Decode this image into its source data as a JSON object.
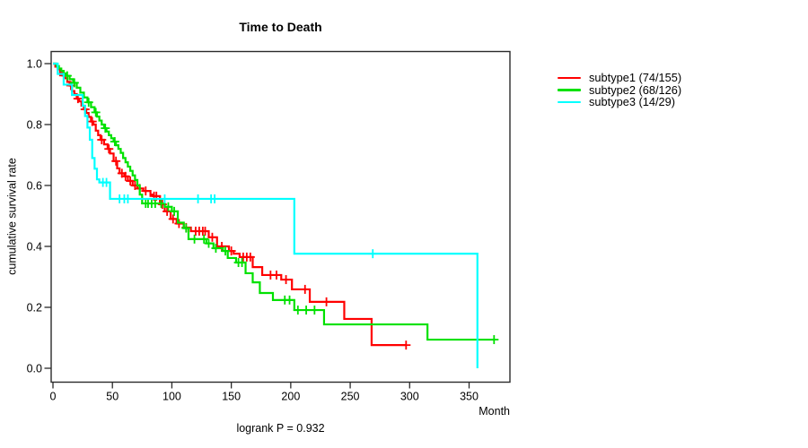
{
  "title": "Time to Death",
  "footer": "logrank P = 0.932",
  "chart_data": {
    "type": "line",
    "subtype": "kaplan-meier-step-curves",
    "title": "Time to Death",
    "xlabel": "Month",
    "ylabel": "cumulative survival rate",
    "annotation": "logrank P = 0.932",
    "xlim": [
      0,
      385
    ],
    "ylim": [
      0.0,
      1.0
    ],
    "x_ticks": [
      0,
      50,
      100,
      150,
      200,
      250,
      300,
      350
    ],
    "y_ticks": [
      "0.0",
      "0.2",
      "0.4",
      "0.6",
      "0.8",
      "1.0"
    ],
    "grid": false,
    "legend_position": "right",
    "axis_color": "#2a2a2a",
    "series": [
      {
        "id": "subtype1",
        "name": "subtype1 (74/155)",
        "color": "#ff0000",
        "events": 74,
        "n": 155,
        "end": 297,
        "steps": [
          [
            0,
            1.0
          ],
          [
            2,
            0.99
          ],
          [
            4,
            0.981
          ],
          [
            6,
            0.97
          ],
          [
            8,
            0.961
          ],
          [
            10,
            0.952
          ],
          [
            12,
            0.94
          ],
          [
            14,
            0.928
          ],
          [
            16,
            0.91
          ],
          [
            18,
            0.9
          ],
          [
            20,
            0.885
          ],
          [
            22,
            0.876
          ],
          [
            24,
            0.862
          ],
          [
            26,
            0.85
          ],
          [
            28,
            0.838
          ],
          [
            30,
            0.825
          ],
          [
            32,
            0.81
          ],
          [
            34,
            0.8
          ],
          [
            36,
            0.78
          ],
          [
            38,
            0.765
          ],
          [
            40,
            0.75
          ],
          [
            43,
            0.735
          ],
          [
            46,
            0.72
          ],
          [
            48,
            0.705
          ],
          [
            51,
            0.68
          ],
          [
            54,
            0.656
          ],
          [
            56,
            0.64
          ],
          [
            60,
            0.63
          ],
          [
            63,
            0.615
          ],
          [
            67,
            0.6
          ],
          [
            71,
            0.59
          ],
          [
            76,
            0.582
          ],
          [
            82,
            0.57
          ],
          [
            84,
            0.565
          ],
          [
            90,
            0.538
          ],
          [
            94,
            0.515
          ],
          [
            99,
            0.49
          ],
          [
            104,
            0.475
          ],
          [
            110,
            0.462
          ],
          [
            116,
            0.45
          ],
          [
            131,
            0.43
          ],
          [
            138,
            0.4
          ],
          [
            148,
            0.385
          ],
          [
            152,
            0.376
          ],
          [
            157,
            0.365
          ],
          [
            168,
            0.332
          ],
          [
            176,
            0.306
          ],
          [
            192,
            0.291
          ],
          [
            201,
            0.259
          ],
          [
            216,
            0.218
          ],
          [
            245,
            0.162
          ],
          [
            268,
            0.076
          ]
        ],
        "censors": [
          [
            9,
            0.961
          ],
          [
            15,
            0.928
          ],
          [
            21,
            0.885
          ],
          [
            27,
            0.85
          ],
          [
            33,
            0.81
          ],
          [
            41,
            0.75
          ],
          [
            47,
            0.72
          ],
          [
            53,
            0.68
          ],
          [
            58,
            0.64
          ],
          [
            61,
            0.63
          ],
          [
            65,
            0.615
          ],
          [
            69,
            0.6
          ],
          [
            73,
            0.59
          ],
          [
            78,
            0.582
          ],
          [
            85,
            0.565
          ],
          [
            87,
            0.565
          ],
          [
            92,
            0.538
          ],
          [
            96,
            0.515
          ],
          [
            101,
            0.49
          ],
          [
            106,
            0.475
          ],
          [
            112,
            0.462
          ],
          [
            120,
            0.45
          ],
          [
            123,
            0.45
          ],
          [
            126,
            0.45
          ],
          [
            128,
            0.45
          ],
          [
            134,
            0.43
          ],
          [
            142,
            0.4
          ],
          [
            150,
            0.385
          ],
          [
            160,
            0.365
          ],
          [
            163,
            0.365
          ],
          [
            166,
            0.365
          ],
          [
            183,
            0.306
          ],
          [
            188,
            0.306
          ],
          [
            196,
            0.291
          ],
          [
            212,
            0.259
          ],
          [
            230,
            0.218
          ],
          [
            297,
            0.076
          ]
        ]
      },
      {
        "id": "subtype2",
        "name": "subtype2 (68/126)",
        "color": "#00e100",
        "events": 68,
        "n": 126,
        "end": 371,
        "steps": [
          [
            0,
            1.0
          ],
          [
            3,
            0.992
          ],
          [
            5,
            0.984
          ],
          [
            7,
            0.976
          ],
          [
            9,
            0.968
          ],
          [
            11,
            0.96
          ],
          [
            14,
            0.949
          ],
          [
            17,
            0.937
          ],
          [
            20,
            0.921
          ],
          [
            23,
            0.905
          ],
          [
            26,
            0.889
          ],
          [
            29,
            0.873
          ],
          [
            32,
            0.857
          ],
          [
            35,
            0.84
          ],
          [
            37,
            0.826
          ],
          [
            39,
            0.813
          ],
          [
            41,
            0.8
          ],
          [
            43,
            0.788
          ],
          [
            45,
            0.777
          ],
          [
            47,
            0.765
          ],
          [
            49,
            0.755
          ],
          [
            51,
            0.744
          ],
          [
            53,
            0.732
          ],
          [
            55,
            0.72
          ],
          [
            57,
            0.707
          ],
          [
            59,
            0.69
          ],
          [
            61,
            0.676
          ],
          [
            63,
            0.662
          ],
          [
            65,
            0.648
          ],
          [
            67,
            0.633
          ],
          [
            69,
            0.618
          ],
          [
            71,
            0.6
          ],
          [
            73,
            0.57
          ],
          [
            75,
            0.541
          ],
          [
            94,
            0.53
          ],
          [
            100,
            0.515
          ],
          [
            105,
            0.478
          ],
          [
            110,
            0.46
          ],
          [
            114,
            0.424
          ],
          [
            129,
            0.41
          ],
          [
            135,
            0.394
          ],
          [
            143,
            0.385
          ],
          [
            147,
            0.362
          ],
          [
            154,
            0.347
          ],
          [
            162,
            0.312
          ],
          [
            168,
            0.282
          ],
          [
            174,
            0.247
          ],
          [
            185,
            0.224
          ],
          [
            203,
            0.191
          ],
          [
            228,
            0.144
          ],
          [
            315,
            0.094
          ]
        ],
        "censors": [
          [
            12,
            0.96
          ],
          [
            18,
            0.937
          ],
          [
            30,
            0.873
          ],
          [
            36,
            0.84
          ],
          [
            44,
            0.788
          ],
          [
            52,
            0.744
          ],
          [
            78,
            0.541
          ],
          [
            80,
            0.541
          ],
          [
            83,
            0.541
          ],
          [
            86,
            0.541
          ],
          [
            91,
            0.541
          ],
          [
            97,
            0.53
          ],
          [
            102,
            0.515
          ],
          [
            112,
            0.46
          ],
          [
            119,
            0.424
          ],
          [
            127,
            0.424
          ],
          [
            131,
            0.41
          ],
          [
            137,
            0.394
          ],
          [
            145,
            0.385
          ],
          [
            156,
            0.347
          ],
          [
            159,
            0.347
          ],
          [
            195,
            0.224
          ],
          [
            199,
            0.224
          ],
          [
            206,
            0.191
          ],
          [
            213,
            0.191
          ],
          [
            220,
            0.191
          ],
          [
            371,
            0.094
          ]
        ]
      },
      {
        "id": "subtype3",
        "name": "subtype3 (14/29)",
        "color": "#00ffff",
        "events": 14,
        "n": 29,
        "end": 357,
        "steps": [
          [
            0,
            1.0
          ],
          [
            4,
            0.966
          ],
          [
            9,
            0.931
          ],
          [
            16,
            0.897
          ],
          [
            25,
            0.862
          ],
          [
            27,
            0.828
          ],
          [
            29,
            0.79
          ],
          [
            31,
            0.75
          ],
          [
            33,
            0.69
          ],
          [
            35,
            0.655
          ],
          [
            37,
            0.62
          ],
          [
            39,
            0.61
          ],
          [
            48,
            0.556
          ],
          [
            203,
            0.376
          ],
          [
            357,
            0.0
          ]
        ],
        "censors": [
          [
            42,
            0.61
          ],
          [
            45,
            0.61
          ],
          [
            56,
            0.556
          ],
          [
            60,
            0.556
          ],
          [
            63,
            0.556
          ],
          [
            94,
            0.556
          ],
          [
            122,
            0.556
          ],
          [
            133,
            0.556
          ],
          [
            136,
            0.556
          ],
          [
            269,
            0.376
          ]
        ]
      }
    ]
  }
}
